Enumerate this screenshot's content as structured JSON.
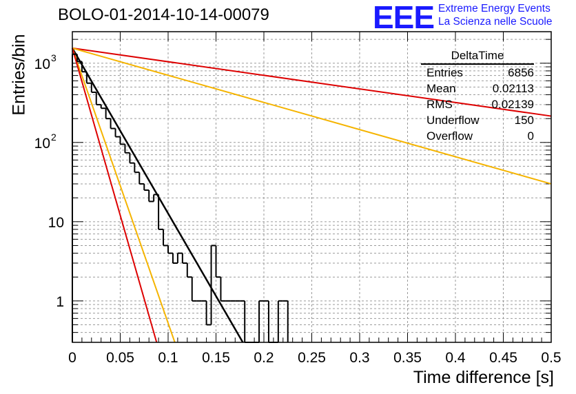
{
  "title": "BOLO-01-2014-10-14-00079",
  "logo": {
    "mark": "EEE",
    "line1": "Extreme Energy Events",
    "line2": "La Scienza nelle Scuole",
    "color": "#1a1aff"
  },
  "stats_box": {
    "title": "DeltaTime",
    "rows": [
      {
        "label": "Entries",
        "value": "6856"
      },
      {
        "label": "Mean",
        "value": "0.02113"
      },
      {
        "label": "RMS",
        "value": "0.02139"
      },
      {
        "label": "Underflow",
        "value": "150"
      },
      {
        "label": "Overflow",
        "value": "0"
      }
    ]
  },
  "chart_data": {
    "type": "line",
    "title": "BOLO-01-2014-10-14-00079",
    "xlabel": "Time difference [s]",
    "ylabel": "Entries/bin",
    "xlim": [
      0,
      0.5
    ],
    "ylim": [
      0.3,
      2500
    ],
    "log_y": true,
    "grid": true,
    "legend": "stats box top-right",
    "x_ticks": [
      "0",
      "0.05",
      "0.1",
      "0.15",
      "0.2",
      "0.25",
      "0.3",
      "0.35",
      "0.4",
      "0.45",
      "0.5"
    ],
    "y_ticks": [
      {
        "value": 1,
        "label": "1"
      },
      {
        "value": 10,
        "label": "10"
      },
      {
        "value": 100,
        "label": "10",
        "exp": "2"
      },
      {
        "value": 1000,
        "label": "10",
        "exp": "3"
      }
    ],
    "histogram": {
      "bin_width": 0.005,
      "counts": [
        1300,
        1050,
        780,
        560,
        430,
        300,
        270,
        200,
        150,
        118,
        95,
        74,
        55,
        42,
        30,
        25,
        18,
        22,
        8,
        5,
        4,
        3,
        4,
        3,
        2,
        1,
        1,
        1,
        0.5,
        5,
        2,
        1,
        1,
        1,
        1,
        1,
        0,
        0,
        0,
        1,
        1,
        0,
        0,
        1,
        1
      ]
    },
    "series": [
      {
        "color": "#000000",
        "points": [
          [
            0,
            1550
          ],
          [
            0.178,
            0.3
          ]
        ]
      },
      {
        "color": "#dd0000",
        "points": [
          [
            0,
            1550
          ],
          [
            0.5,
            215
          ]
        ]
      },
      {
        "color": "#f5b400",
        "points": [
          [
            0,
            1550
          ],
          [
            0.5,
            30
          ]
        ]
      },
      {
        "color": "#f5b400",
        "points": [
          [
            0,
            1550
          ],
          [
            0.107,
            0.3
          ]
        ]
      },
      {
        "color": "#dd0000",
        "points": [
          [
            0,
            1550
          ],
          [
            0.088,
            0.3
          ]
        ]
      }
    ]
  }
}
